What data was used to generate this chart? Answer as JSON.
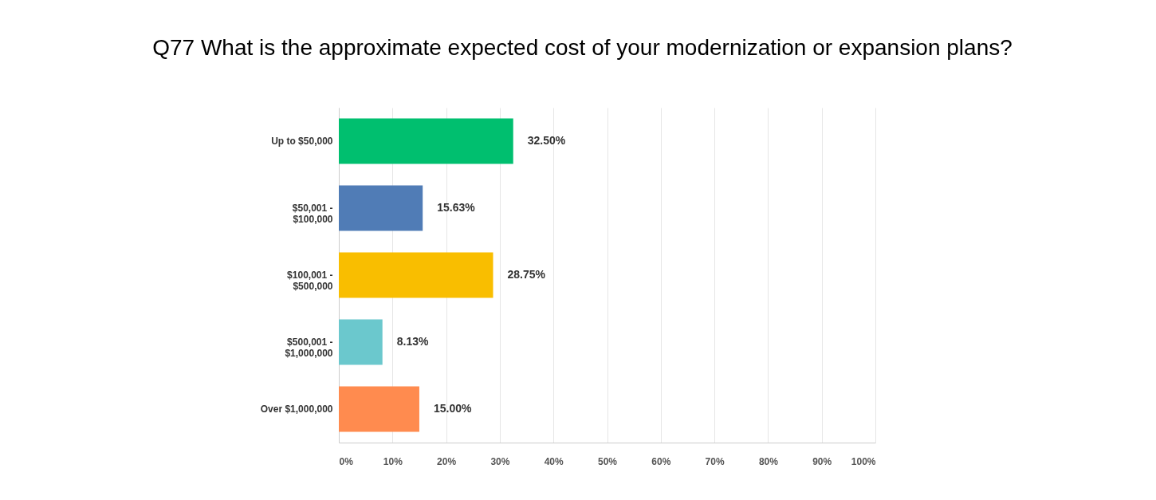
{
  "chart_data": {
    "type": "bar",
    "orientation": "horizontal",
    "title": "Q77 What is the approximate expected cost of your modernization or expansion plans?",
    "categories": [
      "Up to $50,000",
      "$50,001 - $100,000",
      "$100,001 - $500,000",
      "$500,001 - $1,000,000",
      "Over $1,000,000"
    ],
    "values": [
      32.5,
      15.63,
      28.75,
      8.13,
      15.0
    ],
    "colors": [
      "#00bf6f",
      "#507cb6",
      "#f9be00",
      "#6bc8cd",
      "#ff8b4f"
    ],
    "value_labels": [
      "32.50%",
      "15.63%",
      "28.75%",
      "8.13%",
      "15.00%"
    ],
    "xlim": [
      0,
      100
    ],
    "xticks": [
      {
        "value": 0,
        "label": "0%"
      },
      {
        "value": 10,
        "label": "10%"
      },
      {
        "value": 20,
        "label": "20%"
      },
      {
        "value": 30,
        "label": "30%"
      },
      {
        "value": 40,
        "label": "40%"
      },
      {
        "value": 50,
        "label": "50%"
      },
      {
        "value": 60,
        "label": "60%"
      },
      {
        "value": 70,
        "label": "70%"
      },
      {
        "value": 80,
        "label": "80%"
      },
      {
        "value": 90,
        "label": "90%"
      },
      {
        "value": 100,
        "label": "100%"
      }
    ],
    "grid": "x",
    "legend": false
  }
}
